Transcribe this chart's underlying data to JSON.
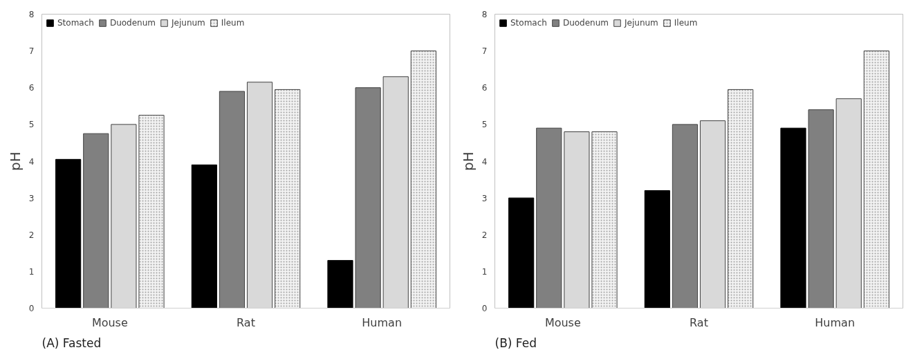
{
  "chart_data": [
    {
      "type": "bar",
      "title": "(A) Fasted",
      "ylabel": "pH",
      "categories": [
        "Mouse",
        "Rat",
        "Human"
      ],
      "ylim": [
        0,
        8
      ],
      "yticks": [
        0,
        1,
        2,
        3,
        4,
        5,
        6,
        7,
        8
      ],
      "grid": false,
      "legend": "top left",
      "series": [
        {
          "name": "Stomach",
          "color": "#000000",
          "values": [
            4.05,
            3.9,
            1.3
          ]
        },
        {
          "name": "Duodenum",
          "color": "#808080",
          "values": [
            4.75,
            5.9,
            6.0
          ]
        },
        {
          "name": "Jejunum",
          "color": "#d9d9d9",
          "values": [
            5.0,
            6.15,
            6.3
          ]
        },
        {
          "name": "Ileum",
          "color": "#f2f2f2",
          "values": [
            5.25,
            5.95,
            7.0
          ]
        }
      ]
    },
    {
      "type": "bar",
      "title": "(B) Fed",
      "ylabel": "pH",
      "categories": [
        "Mouse",
        "Rat",
        "Human"
      ],
      "ylim": [
        0,
        8
      ],
      "yticks": [
        0,
        1,
        2,
        3,
        4,
        5,
        6,
        7,
        8
      ],
      "grid": false,
      "legend": "top left",
      "series": [
        {
          "name": "Stomach",
          "color": "#000000",
          "values": [
            3.0,
            3.2,
            4.9
          ]
        },
        {
          "name": "Duodenum",
          "color": "#808080",
          "values": [
            4.9,
            5.0,
            5.4
          ]
        },
        {
          "name": "Jejunum",
          "color": "#d9d9d9",
          "values": [
            4.8,
            5.1,
            5.7
          ]
        },
        {
          "name": "Ileum",
          "color": "#f2f2f2",
          "values": [
            4.8,
            5.95,
            7.0
          ]
        }
      ]
    }
  ]
}
